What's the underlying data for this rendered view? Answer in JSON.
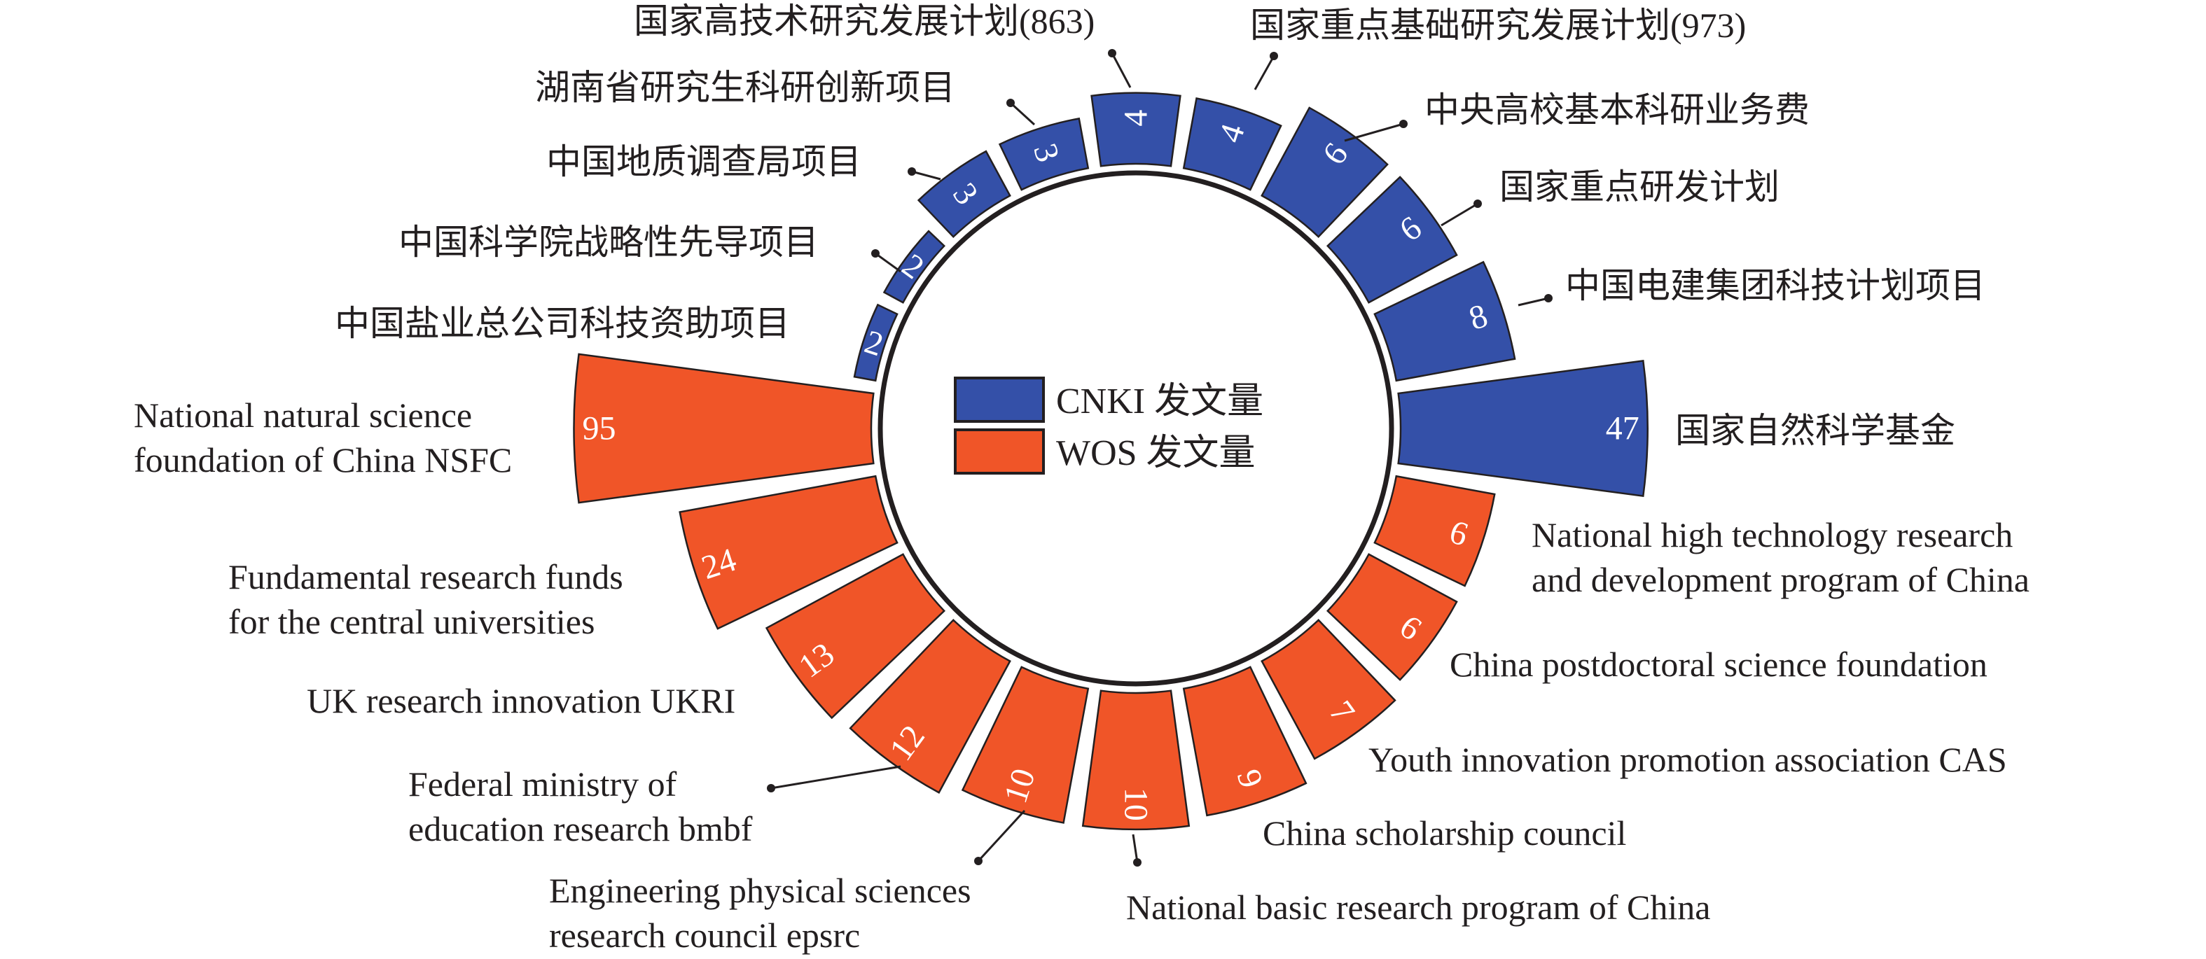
{
  "chart_data": {
    "type": "bar",
    "layout": "radial",
    "title": "",
    "legend": {
      "placement": "center"
    },
    "series": [
      {
        "name": "CNKI 发文量",
        "color": "#3450a8",
        "items": [
          {
            "label": [
              "国家自然科学基金"
            ],
            "value": 47
          },
          {
            "label": [
              "中国电建集团科技计划项目"
            ],
            "value": 8
          },
          {
            "label": [
              "国家重点研发计划"
            ],
            "value": 6
          },
          {
            "label": [
              "中央高校基本科研业务费"
            ],
            "value": 6
          },
          {
            "label": [
              "国家重点基础研究发展计划(973)"
            ],
            "value": 4
          },
          {
            "label": [
              "国家高技术研究发展计划(863)"
            ],
            "value": 4
          },
          {
            "label": [
              "湖南省研究生科研创新项目"
            ],
            "value": 3
          },
          {
            "label": [
              "中国地质调查局项目"
            ],
            "value": 3
          },
          {
            "label": [
              "中国科学院战略性先导项目"
            ],
            "value": 2
          },
          {
            "label": [
              "中国盐业总公司科技资助项目"
            ],
            "value": 2
          }
        ]
      },
      {
        "name": "WOS 发文量",
        "color": "#f05528",
        "items": [
          {
            "label": [
              "National high technology research",
              "and development program of China"
            ],
            "value": 6
          },
          {
            "label": [
              "China postdoctoral science foundation"
            ],
            "value": 6
          },
          {
            "label": [
              "Youth innovation promotion association CAS"
            ],
            "value": 7
          },
          {
            "label": [
              "China scholarship council"
            ],
            "value": 9
          },
          {
            "label": [
              "National basic research program of China"
            ],
            "value": 10
          },
          {
            "label": [
              "Engineering physical sciences",
              "research council epsrc"
            ],
            "value": 10
          },
          {
            "label": [
              "Federal ministry of",
              "education research bmbf"
            ],
            "value": 12
          },
          {
            "label": [
              "UK research innovation UKRI"
            ],
            "value": 13
          },
          {
            "label": [
              "Fundamental research funds",
              "for the central universities"
            ],
            "value": 24
          },
          {
            "label": [
              "National natural science",
              "foundation of China NSFC"
            ],
            "value": 95
          }
        ]
      }
    ]
  }
}
